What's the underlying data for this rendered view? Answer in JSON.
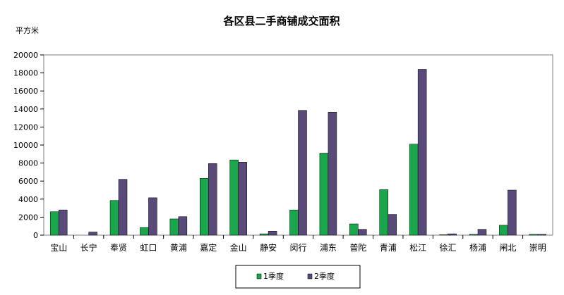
{
  "chart_data": {
    "type": "bar",
    "title": "各区县二手商铺成交面积",
    "ylabel": "平方米",
    "xlabel": "",
    "ylim": [
      0,
      20000
    ],
    "yticks": [
      0,
      2000,
      4000,
      6000,
      8000,
      10000,
      12000,
      14000,
      16000,
      18000,
      20000
    ],
    "grid": false,
    "legend_position": "bottom-center",
    "categories": [
      "宝山",
      "长宁",
      "奉贤",
      "虹口",
      "黄浦",
      "嘉定",
      "金山",
      "静安",
      "闵行",
      "浦东",
      "普陀",
      "青浦",
      "松江",
      "徐汇",
      "杨浦",
      "闸北",
      "崇明"
    ],
    "series": [
      {
        "name": "1季度",
        "color": "#1aa64a",
        "values": [
          2600,
          0,
          3850,
          850,
          1800,
          6300,
          8350,
          150,
          2800,
          9100,
          1250,
          5050,
          10100,
          50,
          100,
          1100,
          100
        ]
      },
      {
        "name": "2季度",
        "color": "#5a4a7a",
        "values": [
          2800,
          350,
          6200,
          4150,
          2050,
          7950,
          8100,
          450,
          13850,
          13650,
          650,
          2300,
          18400,
          150,
          650,
          5000,
          100
        ]
      }
    ]
  }
}
